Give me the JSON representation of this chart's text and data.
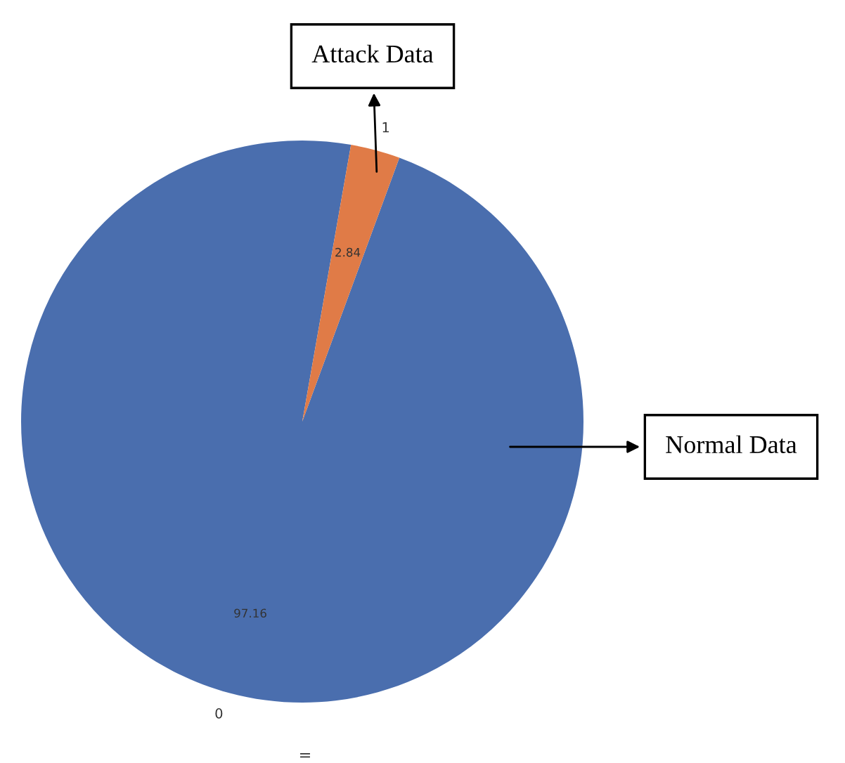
{
  "chart_data": {
    "type": "pie",
    "categories": [
      "0",
      "1"
    ],
    "values": [
      97.16,
      2.84
    ],
    "colors": [
      "#4a6eae",
      "#e07b47"
    ],
    "data_labels": true,
    "annotations": [
      "Attack Data",
      "Normal Data",
      "="
    ]
  }
}
